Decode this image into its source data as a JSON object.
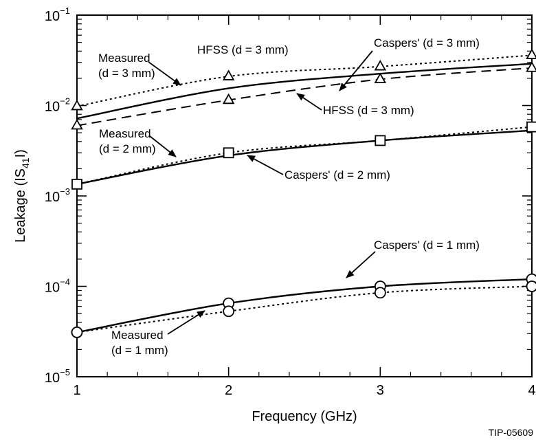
{
  "chart_data": {
    "type": "line",
    "title": "",
    "xlabel": "Frequency (GHz)",
    "ylabel_parts": {
      "main": "Leakage (IS",
      "sub": "41",
      "end": "I)"
    },
    "x_ticks": [
      "1",
      "2",
      "3",
      "4"
    ],
    "y_ticks": [
      {
        "base": "10",
        "exp": "−5"
      },
      {
        "base": "10",
        "exp": "−4"
      },
      {
        "base": "10",
        "exp": "−3"
      },
      {
        "base": "10",
        "exp": "−2"
      },
      {
        "base": "10",
        "exp": "−1"
      }
    ],
    "xlim": [
      1,
      4
    ],
    "ylim": [
      1e-05,
      0.1
    ],
    "y_scale": "log",
    "grid": false,
    "x": [
      1,
      2,
      3,
      4
    ],
    "series": [
      {
        "style": "dotted",
        "marker": "triangle",
        "values": [
          0.0098,
          0.021,
          0.027,
          0.036
        ]
      },
      {
        "style": "solid",
        "marker": "none",
        "values": [
          0.0072,
          0.0155,
          0.0225,
          0.029
        ]
      },
      {
        "style": "dashed",
        "marker": "triangle",
        "values": [
          0.006,
          0.0115,
          0.0195,
          0.026
        ]
      },
      {
        "style": "dotted",
        "marker": "square",
        "values": [
          0.00135,
          0.003,
          0.0041,
          0.0058
        ]
      },
      {
        "style": "solid",
        "marker": "none",
        "values": [
          0.00135,
          0.0028,
          0.0041,
          0.0053
        ]
      },
      {
        "style": "solid",
        "marker": "circle",
        "values": [
          3.1e-05,
          6.5e-05,
          0.0001,
          0.00012
        ]
      },
      {
        "style": "dotted",
        "marker": "circle",
        "values": [
          3.1e-05,
          5.3e-05,
          8.5e-05,
          0.0001
        ]
      }
    ],
    "annotations": [
      {
        "lines": [
          "HFSS (d = 3 mm)"
        ]
      },
      {
        "lines": [
          "Caspers' (d = 3 mm)"
        ]
      },
      {
        "lines": [
          "Measured",
          "(d = 3 mm)"
        ]
      },
      {
        "lines": [
          "HFSS (d = 3 mm)"
        ]
      },
      {
        "lines": [
          "Measured",
          "(d = 2 mm)"
        ]
      },
      {
        "lines": [
          "Caspers' (d = 2 mm)"
        ]
      },
      {
        "lines": [
          "Caspers' (d = 1 mm)"
        ]
      },
      {
        "lines": [
          "Measured",
          "(d = 1 mm)"
        ]
      }
    ]
  },
  "credit": "TIP-05609"
}
